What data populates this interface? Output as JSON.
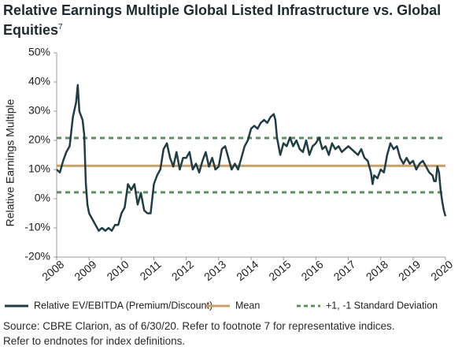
{
  "chart_data": {
    "type": "line",
    "title": "Relative Earnings Multiple Global Listed Infrastructure vs. Global Equities",
    "title_footnote": "7",
    "y_label": "Relative Earnings Multiple",
    "source": [
      "Source: CBRE Clarion, as of 6/30/20. Refer to footnote 7 for representative indices.",
      "Refer to endnotes for index definitions."
    ],
    "x": [
      2008.0,
      2008.1,
      2008.2,
      2008.3,
      2008.4,
      2008.5,
      2008.6,
      2008.65,
      2008.7,
      2008.8,
      2008.85,
      2008.9,
      2008.95,
      2009.0,
      2009.1,
      2009.2,
      2009.3,
      2009.4,
      2009.5,
      2009.6,
      2009.7,
      2009.8,
      2009.9,
      2010.0,
      2010.1,
      2010.2,
      2010.3,
      2010.4,
      2010.5,
      2010.6,
      2010.7,
      2010.8,
      2010.9,
      2011.0,
      2011.1,
      2011.2,
      2011.3,
      2011.4,
      2011.5,
      2011.6,
      2011.7,
      2011.8,
      2011.9,
      2012.0,
      2012.1,
      2012.2,
      2012.3,
      2012.4,
      2012.5,
      2012.6,
      2012.7,
      2012.8,
      2012.9,
      2013.0,
      2013.1,
      2013.2,
      2013.3,
      2013.4,
      2013.5,
      2013.6,
      2013.7,
      2013.8,
      2013.9,
      2014.0,
      2014.1,
      2014.2,
      2014.3,
      2014.4,
      2014.5,
      2014.6,
      2014.7,
      2014.75,
      2014.8,
      2014.9,
      2015.0,
      2015.1,
      2015.2,
      2015.3,
      2015.4,
      2015.5,
      2015.6,
      2015.7,
      2015.8,
      2015.9,
      2016.0,
      2016.1,
      2016.2,
      2016.3,
      2016.4,
      2016.5,
      2016.6,
      2016.7,
      2016.8,
      2016.9,
      2017.0,
      2017.1,
      2017.2,
      2017.3,
      2017.4,
      2017.5,
      2017.6,
      2017.7,
      2017.75,
      2017.8,
      2017.9,
      2018.0,
      2018.1,
      2018.2,
      2018.3,
      2018.4,
      2018.5,
      2018.6,
      2018.7,
      2018.8,
      2018.9,
      2019.0,
      2019.1,
      2019.2,
      2019.3,
      2019.4,
      2019.5,
      2019.6,
      2019.65,
      2019.7,
      2019.75,
      2019.8,
      2019.85,
      2019.9,
      2019.95,
      2020.0
    ],
    "series": [
      {
        "name": "Relative EV/EBITDA (Premium/Discount)",
        "color": "#1f3d44",
        "values": [
          10,
          9,
          13,
          16,
          18,
          28,
          33,
          39,
          30,
          27,
          22,
          5,
          -2,
          -5,
          -7,
          -9,
          -11,
          -10,
          -11,
          -10,
          -11,
          -9,
          -9,
          -5,
          -3,
          5,
          3,
          5,
          -2,
          2,
          -4,
          -5,
          -5,
          5,
          8,
          10,
          17,
          19,
          14,
          11,
          16,
          10,
          14,
          14,
          16,
          10,
          12,
          9,
          13,
          16,
          11,
          14,
          10,
          11,
          17,
          18,
          14,
          10,
          12,
          10,
          14,
          18,
          20,
          24,
          25,
          24,
          26,
          27,
          26,
          28,
          29,
          27,
          21,
          15,
          19,
          18,
          21,
          18,
          20,
          17,
          16,
          20,
          15,
          18,
          19,
          21,
          17,
          18,
          15,
          19,
          17,
          18,
          16,
          17,
          18,
          17,
          16,
          15,
          17,
          14,
          13,
          9,
          5,
          8,
          7,
          10,
          9,
          15,
          19,
          17,
          18,
          14,
          12,
          14,
          12,
          13,
          10,
          12,
          13,
          11,
          9,
          8,
          6,
          6,
          11,
          9,
          3,
          -1,
          -4,
          -6
        ]
      }
    ],
    "reference_lines": [
      {
        "name": "Mean",
        "color": "#c9a06a",
        "style": "solid",
        "values": [
          11.3
        ]
      },
      {
        "name": "+1, -1 Standard Deviation",
        "color": "#5e8f5e",
        "style": "dashed",
        "values": [
          20.8,
          2.2
        ]
      }
    ],
    "xlim": [
      2008,
      2020
    ],
    "xticks": [
      2008,
      2009,
      2010,
      2011,
      2012,
      2013,
      2014,
      2015,
      2016,
      2017,
      2018,
      2019,
      2020
    ],
    "ylim": [
      -20,
      50
    ],
    "yticks": [
      {
        "value": -20,
        "label": "-20%"
      },
      {
        "value": -10,
        "label": "-10%"
      },
      {
        "value": 0,
        "label": "0%"
      },
      {
        "value": 10,
        "label": "10%"
      },
      {
        "value": 20,
        "label": "20%"
      },
      {
        "value": 30,
        "label": "30%"
      },
      {
        "value": 40,
        "label": "40%"
      },
      {
        "value": 50,
        "label": "50%"
      }
    ],
    "grid": false
  }
}
